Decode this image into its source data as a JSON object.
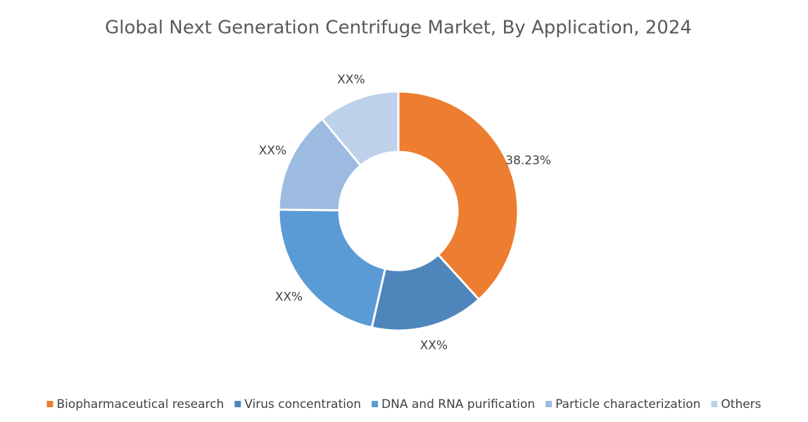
{
  "chart_data": {
    "type": "donut",
    "title": "Global Next Generation Centrifuge Market, By Application, 2024",
    "categories": [
      "Biopharmaceutical research",
      "Virus concentration",
      "DNA and RNA purification",
      "Particle characterization",
      "Others"
    ],
    "values": [
      38.23,
      15.3,
      21.6,
      13.8,
      11.0
    ],
    "value_labels": [
      "38.23%",
      "XX%",
      "XX%",
      "XX%",
      "XX%"
    ],
    "colors": [
      "#ed7d31",
      "#4e86bb",
      "#5b9bd5",
      "#9dbbe0",
      "#bdd1ea"
    ],
    "legend": "bottom"
  }
}
